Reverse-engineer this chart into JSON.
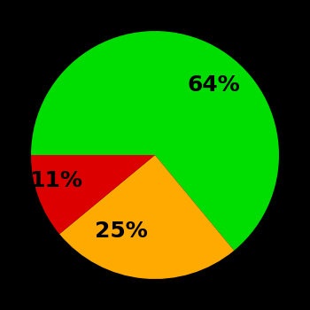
{
  "slices": [
    64,
    25,
    11
  ],
  "colors": [
    "#00dd00",
    "#ffaa00",
    "#dd0000"
  ],
  "labels": [
    "64%",
    "25%",
    "11%"
  ],
  "background_color": "#000000",
  "text_color": "#000000",
  "label_fontsize": 18,
  "label_fontweight": "bold",
  "startangle": 180,
  "labeldistance": 0.62
}
